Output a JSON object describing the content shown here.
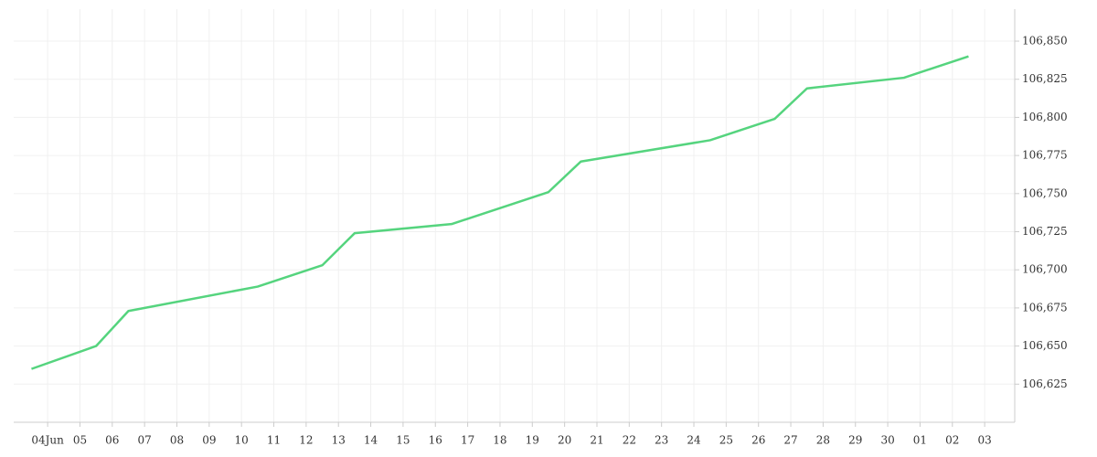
{
  "chart_data": {
    "type": "line",
    "x": [
      -0.5,
      1.5,
      2.5,
      6.5,
      8.5,
      9.5,
      12.5,
      15.5,
      16.5,
      20.5,
      22.5,
      23.5,
      26.5,
      28.5
    ],
    "series": [
      {
        "color": "#55d47e",
        "values": [
          106635,
          106650,
          106673,
          106689,
          106703,
          106724,
          106730,
          106751,
          106771,
          106785,
          106799,
          106819,
          106826,
          106840
        ]
      }
    ],
    "xlim": [
      -1.05,
      29.93
    ],
    "xticks": [
      {
        "value": 0,
        "label": "04Jun"
      },
      {
        "value": 1,
        "label": "05"
      },
      {
        "value": 2,
        "label": "06"
      },
      {
        "value": 3,
        "label": "07"
      },
      {
        "value": 4,
        "label": "08"
      },
      {
        "value": 5,
        "label": "09"
      },
      {
        "value": 6,
        "label": "10"
      },
      {
        "value": 7,
        "label": "11"
      },
      {
        "value": 8,
        "label": "12"
      },
      {
        "value": 9,
        "label": "13"
      },
      {
        "value": 10,
        "label": "14"
      },
      {
        "value": 11,
        "label": "15"
      },
      {
        "value": 12,
        "label": "16"
      },
      {
        "value": 13,
        "label": "17"
      },
      {
        "value": 14,
        "label": "18"
      },
      {
        "value": 15,
        "label": "19"
      },
      {
        "value": 16,
        "label": "20"
      },
      {
        "value": 17,
        "label": "21"
      },
      {
        "value": 18,
        "label": "22"
      },
      {
        "value": 19,
        "label": "23"
      },
      {
        "value": 20,
        "label": "24"
      },
      {
        "value": 21,
        "label": "25"
      },
      {
        "value": 22,
        "label": "26"
      },
      {
        "value": 23,
        "label": "27"
      },
      {
        "value": 24,
        "label": "28"
      },
      {
        "value": 25,
        "label": "29"
      },
      {
        "value": 26,
        "label": "30"
      },
      {
        "value": 27,
        "label": "01"
      },
      {
        "value": 28,
        "label": "02"
      },
      {
        "value": 29,
        "label": "03"
      }
    ],
    "ylim": [
      106600,
      106871
    ],
    "yticks": [
      {
        "value": 106625,
        "label": "106,625"
      },
      {
        "value": 106650,
        "label": "106,650"
      },
      {
        "value": 106675,
        "label": "106,675"
      },
      {
        "value": 106700,
        "label": "106,700"
      },
      {
        "value": 106725,
        "label": "106,725"
      },
      {
        "value": 106750,
        "label": "106,750"
      },
      {
        "value": 106775,
        "label": "106,775"
      },
      {
        "value": 106800,
        "label": "106,800"
      },
      {
        "value": 106825,
        "label": "106,825"
      },
      {
        "value": 106850,
        "label": "106,850"
      }
    ],
    "grid": true
  }
}
